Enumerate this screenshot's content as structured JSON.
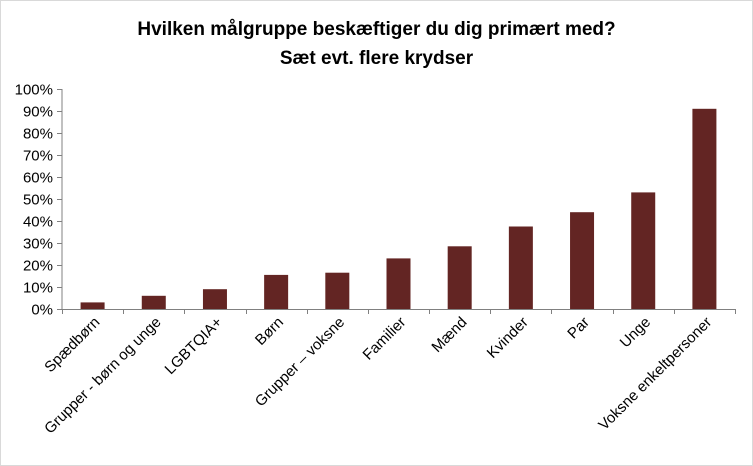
{
  "chart_data": {
    "type": "bar",
    "title": "Hvilken målgruppe beskæftiger du dig primært med?",
    "subtitle": "Sæt evt. flere krydser",
    "xlabel": "",
    "ylabel": "",
    "categories": [
      "Spædbørn",
      "Grupper - børn og unge",
      "LGBTQIA+",
      "Børn",
      "Grupper – voksne",
      "Familier",
      "Mænd",
      "Kvinder",
      "Par",
      "Unge",
      "Voksne enkeltpersoner"
    ],
    "values": [
      3,
      6,
      9,
      15.5,
      16.5,
      23,
      28.5,
      37.5,
      44,
      53,
      91
    ],
    "ylim": [
      0,
      100
    ],
    "yticks": [
      "0%",
      "10%",
      "20%",
      "30%",
      "40%",
      "50%",
      "60%",
      "70%",
      "80%",
      "90%",
      "100%"
    ],
    "grid": false,
    "legend": "none",
    "bar_color": "#632523"
  }
}
